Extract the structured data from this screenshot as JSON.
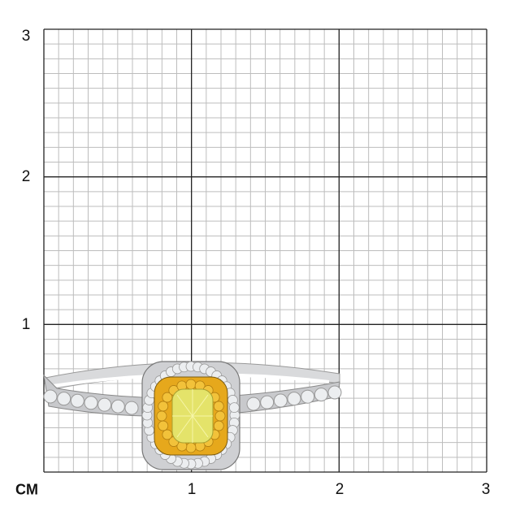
{
  "scale": {
    "unit_label": "CM",
    "x_labels": [
      "1",
      "2",
      "3"
    ],
    "y_labels": [
      "1",
      "2",
      "3"
    ],
    "range_cm": [
      0,
      3
    ],
    "minor_divisions_per_cm": 10
  },
  "colors": {
    "minor_grid": "#bdbdbd",
    "major_grid": "#222222",
    "metal": "#d9dadc",
    "white_diamond": "#eceef0",
    "yellow_halo": "#e6a81c",
    "center_stone": "#e4e36a"
  },
  "product": {
    "icon": "halo-diamond-ring-image"
  }
}
